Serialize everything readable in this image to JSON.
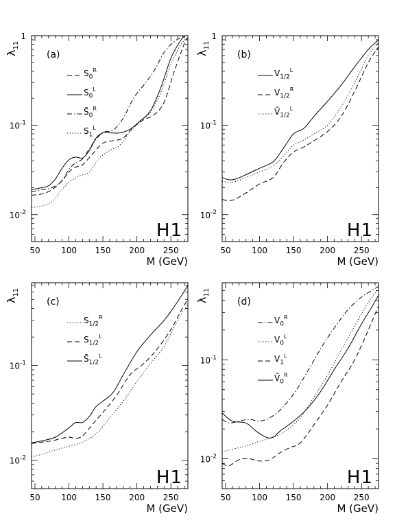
{
  "chart_data": [
    {
      "type": "line",
      "panel_label": "(a)",
      "ylabel_main": "λ",
      "ylabel_sub": "11",
      "xlabel": "M (GeV)",
      "watermark": "H1",
      "x_ticks": [
        "50",
        "100",
        "150",
        "200",
        "250"
      ],
      "y_tick_labels": [
        {
          "base": "10",
          "exp": "-2",
          "value": 0.01
        },
        {
          "base": "10",
          "exp": "-1",
          "value": 0.1
        },
        {
          "base": "",
          "exp": "1",
          "value": 1
        }
      ],
      "xlim": [
        45,
        275
      ],
      "ylim": [
        0.005,
        1
      ],
      "yscale": "log",
      "legend_placement": "upper-left",
      "series": [
        {
          "name": "S0R",
          "label_html": "S<sub>0</sub><sup>R</sup>",
          "style": "dashed",
          "x": [
            45,
            60,
            75,
            90,
            100,
            110,
            120,
            135,
            150,
            165,
            180,
            195,
            210,
            225,
            240,
            255,
            270,
            275
          ],
          "y": [
            0.0165,
            0.017,
            0.019,
            0.024,
            0.03,
            0.034,
            0.036,
            0.048,
            0.063,
            0.067,
            0.072,
            0.095,
            0.115,
            0.13,
            0.18,
            0.4,
            0.82,
            0.95
          ]
        },
        {
          "name": "S0L",
          "label_html": "S<sub>0</sub><sup>L</sup>",
          "style": "solid",
          "x": [
            45,
            60,
            70,
            80,
            90,
            100,
            110,
            120,
            130,
            140,
            150,
            160,
            175,
            190,
            205,
            220,
            235,
            250,
            265,
            275
          ],
          "y": [
            0.019,
            0.02,
            0.021,
            0.025,
            0.033,
            0.041,
            0.044,
            0.043,
            0.052,
            0.072,
            0.082,
            0.082,
            0.082,
            0.09,
            0.112,
            0.145,
            0.26,
            0.56,
            0.9,
            1.05
          ]
        },
        {
          "name": "~S0R",
          "label_html": "S&#771;<sub>0</sub><sup>R</sup>",
          "style": "dashdot",
          "x": [
            45,
            60,
            75,
            90,
            100,
            110,
            120,
            135,
            150,
            165,
            180,
            195,
            210,
            225,
            240,
            255,
            270,
            275
          ],
          "y": [
            0.018,
            0.019,
            0.02,
            0.024,
            0.032,
            0.038,
            0.042,
            0.062,
            0.083,
            0.088,
            0.12,
            0.2,
            0.28,
            0.4,
            0.65,
            0.86,
            1.0,
            1.05
          ]
        },
        {
          "name": "S1L",
          "label_html": "S<sub>1</sub><sup>L</sup>",
          "style": "dotted",
          "x": [
            45,
            60,
            75,
            90,
            100,
            115,
            130,
            145,
            160,
            175,
            190,
            205,
            220,
            235,
            250,
            265,
            275
          ],
          "y": [
            0.012,
            0.0125,
            0.014,
            0.019,
            0.023,
            0.027,
            0.03,
            0.043,
            0.052,
            0.06,
            0.085,
            0.11,
            0.14,
            0.23,
            0.48,
            0.8,
            0.95
          ]
        }
      ]
    },
    {
      "type": "line",
      "panel_label": "(b)",
      "ylabel_main": "λ",
      "ylabel_sub": "11",
      "xlabel": "M (GeV)",
      "watermark": "H1",
      "x_ticks": [
        "50",
        "100",
        "150",
        "200",
        "250"
      ],
      "y_tick_labels": [
        {
          "base": "10",
          "exp": "-2",
          "value": 0.01
        },
        {
          "base": "10",
          "exp": "-1",
          "value": 0.1
        },
        {
          "base": "",
          "exp": "1",
          "value": 1
        }
      ],
      "xlim": [
        45,
        275
      ],
      "ylim": [
        0.005,
        1
      ],
      "yscale": "log",
      "legend_placement": "upper-left",
      "series": [
        {
          "name": "V1/2L",
          "label_html": "V<sub>1/2</sub><sup>L</sup>",
          "style": "solid",
          "x": [
            45,
            55,
            65,
            80,
            100,
            120,
            135,
            150,
            165,
            180,
            200,
            220,
            240,
            260,
            275
          ],
          "y": [
            0.026,
            0.0245,
            0.025,
            0.028,
            0.033,
            0.039,
            0.055,
            0.08,
            0.092,
            0.125,
            0.185,
            0.28,
            0.45,
            0.7,
            0.9
          ]
        },
        {
          "name": "V1/2R",
          "label_html": "V<sub>1/2</sub><sup>R</sup>",
          "style": "dashed",
          "x": [
            45,
            55,
            65,
            80,
            100,
            120,
            135,
            150,
            165,
            180,
            200,
            220,
            240,
            260,
            275
          ],
          "y": [
            0.0148,
            0.0143,
            0.015,
            0.0175,
            0.022,
            0.026,
            0.038,
            0.05,
            0.057,
            0.067,
            0.085,
            0.125,
            0.24,
            0.5,
            0.75
          ]
        },
        {
          "name": "~V1/2L",
          "label_html": "V&#771;<sub>1/2</sub><sup>L</sup>",
          "style": "dotted",
          "x": [
            45,
            55,
            65,
            80,
            100,
            120,
            135,
            150,
            165,
            180,
            200,
            220,
            240,
            260,
            275
          ],
          "y": [
            0.0235,
            0.023,
            0.0235,
            0.026,
            0.03,
            0.035,
            0.045,
            0.06,
            0.068,
            0.08,
            0.1,
            0.16,
            0.3,
            0.6,
            0.85
          ]
        }
      ]
    },
    {
      "type": "line",
      "panel_label": "(c)",
      "ylabel_main": "λ",
      "ylabel_sub": "11",
      "xlabel": "M (GeV)",
      "watermark": "H1",
      "x_ticks": [
        "50",
        "100",
        "150",
        "200",
        "250"
      ],
      "y_tick_labels": [
        {
          "base": "10",
          "exp": "-2",
          "value": 0.01
        },
        {
          "base": "10",
          "exp": "-1",
          "value": 0.1
        }
      ],
      "xlim": [
        45,
        275
      ],
      "ylim": [
        0.005,
        0.75
      ],
      "yscale": "log",
      "legend_placement": "upper-left",
      "series": [
        {
          "name": "S1/2R",
          "label_html": "S<sub>1/2</sub><sup>R</sup>",
          "style": "dotted",
          "x": [
            45,
            60,
            80,
            100,
            120,
            140,
            160,
            180,
            200,
            220,
            240,
            260,
            275
          ],
          "y": [
            0.0108,
            0.0115,
            0.0128,
            0.014,
            0.0155,
            0.019,
            0.028,
            0.042,
            0.068,
            0.105,
            0.16,
            0.3,
            0.45
          ]
        },
        {
          "name": "S1/2L",
          "label_html": "S<sub>1/2</sub><sup>L</sup>",
          "style": "dashed",
          "x": [
            45,
            60,
            75,
            90,
            100,
            110,
            120,
            135,
            150,
            170,
            190,
            210,
            230,
            250,
            265,
            275
          ],
          "y": [
            0.015,
            0.0155,
            0.016,
            0.017,
            0.0175,
            0.017,
            0.018,
            0.024,
            0.032,
            0.048,
            0.08,
            0.105,
            0.15,
            0.24,
            0.38,
            0.5
          ]
        },
        {
          "name": "~S1/2L",
          "label_html": "S&#771;<sub>1/2</sub><sup>L</sup>",
          "style": "solid",
          "x": [
            45,
            60,
            80,
            100,
            110,
            120,
            130,
            140,
            150,
            165,
            180,
            200,
            220,
            240,
            255,
            275
          ],
          "y": [
            0.0152,
            0.016,
            0.0175,
            0.022,
            0.025,
            0.025,
            0.029,
            0.037,
            0.042,
            0.052,
            0.08,
            0.14,
            0.21,
            0.3,
            0.42,
            0.7
          ]
        }
      ]
    },
    {
      "type": "line",
      "panel_label": "(d)",
      "ylabel_main": "λ",
      "ylabel_sub": "11",
      "xlabel": "M (GeV)",
      "watermark": "H1",
      "x_ticks": [
        "50",
        "100",
        "150",
        "200",
        "250"
      ],
      "y_tick_labels": [
        {
          "base": "10",
          "exp": "-2",
          "value": 0.01
        },
        {
          "base": "10",
          "exp": "-1",
          "value": 0.1
        }
      ],
      "xlim": [
        45,
        275
      ],
      "ylim": [
        0.005,
        0.6
      ],
      "yscale": "log",
      "legend_placement": "upper-left",
      "series": [
        {
          "name": "V0R",
          "label_html": "V<sub>0</sub><sup>R</sup>",
          "style": "dashdot",
          "x": [
            45,
            55,
            70,
            85,
            100,
            115,
            130,
            150,
            170,
            190,
            210,
            230,
            250,
            265,
            275
          ],
          "y": [
            0.025,
            0.023,
            0.024,
            0.025,
            0.024,
            0.026,
            0.031,
            0.045,
            0.075,
            0.13,
            0.21,
            0.32,
            0.43,
            0.5,
            0.55
          ]
        },
        {
          "name": "V0L",
          "label_html": "V<sub>0</sub><sup>L</sup>",
          "style": "dotted",
          "x": [
            45,
            60,
            80,
            100,
            120,
            140,
            160,
            180,
            200,
            220,
            240,
            260,
            275
          ],
          "y": [
            0.0118,
            0.0125,
            0.0135,
            0.015,
            0.0165,
            0.0195,
            0.026,
            0.042,
            0.07,
            0.125,
            0.22,
            0.38,
            0.52
          ]
        },
        {
          "name": "V1L",
          "label_html": "V<sub>1</sub><sup>L</sup>",
          "style": "dashed",
          "x": [
            45,
            55,
            70,
            85,
            100,
            115,
            130,
            145,
            160,
            180,
            200,
            220,
            240,
            260,
            275
          ],
          "y": [
            0.009,
            0.0085,
            0.0098,
            0.01,
            0.0095,
            0.0098,
            0.0115,
            0.013,
            0.0145,
            0.022,
            0.035,
            0.06,
            0.1,
            0.2,
            0.35
          ]
        },
        {
          "name": "~V0R",
          "label_html": "V&#771;<sub>0</sub><sup>R</sup>",
          "style": "solid",
          "x": [
            45,
            60,
            80,
            95,
            110,
            120,
            130,
            150,
            170,
            190,
            210,
            230,
            250,
            265,
            275
          ],
          "y": [
            0.029,
            0.024,
            0.023,
            0.019,
            0.0165,
            0.0165,
            0.019,
            0.024,
            0.032,
            0.048,
            0.08,
            0.13,
            0.23,
            0.34,
            0.45
          ]
        }
      ]
    }
  ]
}
